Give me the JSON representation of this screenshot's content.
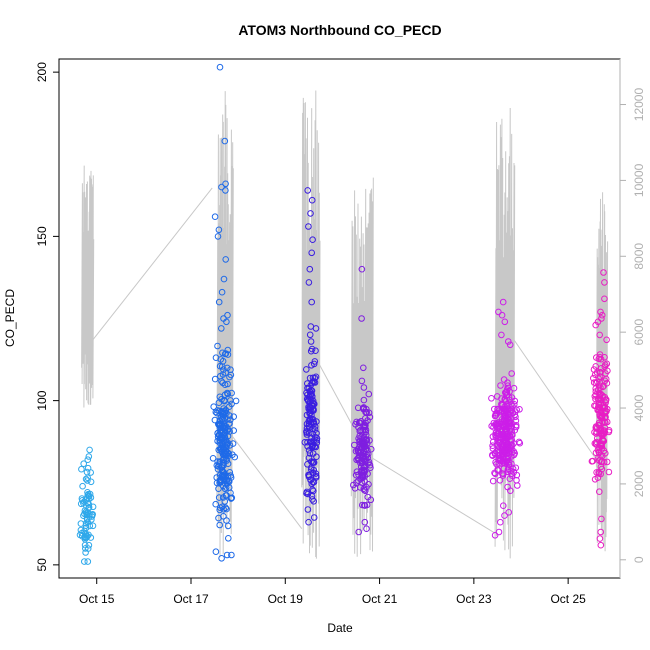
{
  "chart_data": {
    "type": "scatter",
    "title": "ATOM3 Northbound CO_PECD",
    "xlabel": "Date",
    "ylabel": "CO_PECD",
    "x_ticks": [
      {
        "day": 15,
        "label": "Oct 15"
      },
      {
        "day": 17,
        "label": "Oct 17"
      },
      {
        "day": 19,
        "label": "Oct 19"
      },
      {
        "day": 21,
        "label": "Oct 21"
      },
      {
        "day": 23,
        "label": "Oct 23"
      },
      {
        "day": 25,
        "label": "Oct 25"
      }
    ],
    "xlim": [
      14.2,
      26.1
    ],
    "y_ticks": [
      50,
      100,
      150,
      200
    ],
    "ylim": [
      46,
      204
    ],
    "y2_ticks": [
      0,
      2000,
      4000,
      6000,
      8000,
      10000,
      12000
    ],
    "y2lim": [
      -480,
      13200
    ],
    "point_series": [
      {
        "day_center": 14.8,
        "day_spread": 0.11,
        "color": "#2fa8ea",
        "y_center": 66,
        "y_spread": 11,
        "count": 70,
        "highlights": [
          85,
          83,
          82,
          55,
          56,
          51,
          51
        ]
      },
      {
        "day_center": 17.7,
        "day_spread": 0.16,
        "color": "#1f6ae8",
        "y_center": 86,
        "y_spread": 21,
        "count": 220,
        "highlights": [
          201.5,
          179,
          166,
          165,
          164,
          156,
          152,
          150,
          143,
          137,
          133,
          130,
          126,
          125,
          124,
          122,
          114,
          112,
          53,
          54,
          52,
          53
        ]
      },
      {
        "day_center": 19.55,
        "day_spread": 0.1,
        "color": "#3a1ee0",
        "y_center": 92,
        "y_spread": 21,
        "count": 140,
        "highlights": [
          164,
          161,
          157,
          153,
          149,
          145,
          140,
          136,
          130,
          122,
          118,
          63
        ]
      },
      {
        "day_center": 20.65,
        "day_spread": 0.14,
        "color": "#7f1fe0",
        "y_center": 84,
        "y_spread": 13,
        "count": 150,
        "highlights": [
          140,
          125,
          110,
          106,
          104,
          102,
          60,
          61,
          63
        ]
      },
      {
        "day_center": 23.65,
        "day_spread": 0.22,
        "color": "#cc1ee8",
        "y_center": 90,
        "y_spread": 12,
        "count": 280,
        "highlights": [
          130,
          127,
          126,
          124,
          120,
          118,
          117,
          68,
          66,
          65,
          63,
          60,
          59
        ]
      },
      {
        "day_center": 25.7,
        "day_spread": 0.13,
        "color": "#e81ec4",
        "y_center": 96,
        "y_spread": 16,
        "count": 160,
        "highlights": [
          139,
          136,
          131,
          127,
          126,
          125,
          124,
          123,
          120,
          64,
          60,
          58,
          56
        ]
      }
    ],
    "line_series": {
      "color": "#c8c8c8",
      "legend": "",
      "bursts": [
        {
          "day_start": 14.68,
          "day_end": 14.92,
          "low": 4000,
          "high": 10400
        },
        {
          "day_start": 17.55,
          "day_end": 17.88,
          "low": 0,
          "high": 12500
        },
        {
          "day_start": 19.35,
          "day_end": 19.72,
          "low": 0,
          "high": 12500
        },
        {
          "day_start": 20.4,
          "day_end": 20.85,
          "low": 0,
          "high": 10300
        },
        {
          "day_start": 23.45,
          "day_end": 23.85,
          "low": 0,
          "high": 12000
        },
        {
          "day_start": 25.6,
          "day_end": 25.82,
          "low": 0,
          "high": 9900
        }
      ],
      "connectors": [
        {
          "from_day": 14.92,
          "from_v": 5800,
          "to_day": 17.45,
          "to_v": 9800
        },
        {
          "from_day": 17.85,
          "from_v": 3300,
          "to_day": 19.35,
          "to_v": 820
        },
        {
          "from_day": 19.7,
          "from_v": 5200,
          "to_day": 20.42,
          "to_v": 3550
        },
        {
          "from_day": 20.82,
          "from_v": 2700,
          "to_day": 23.45,
          "to_v": 700
        },
        {
          "from_day": 23.85,
          "from_v": 5800,
          "to_day": 25.62,
          "to_v": 2600
        }
      ]
    }
  }
}
